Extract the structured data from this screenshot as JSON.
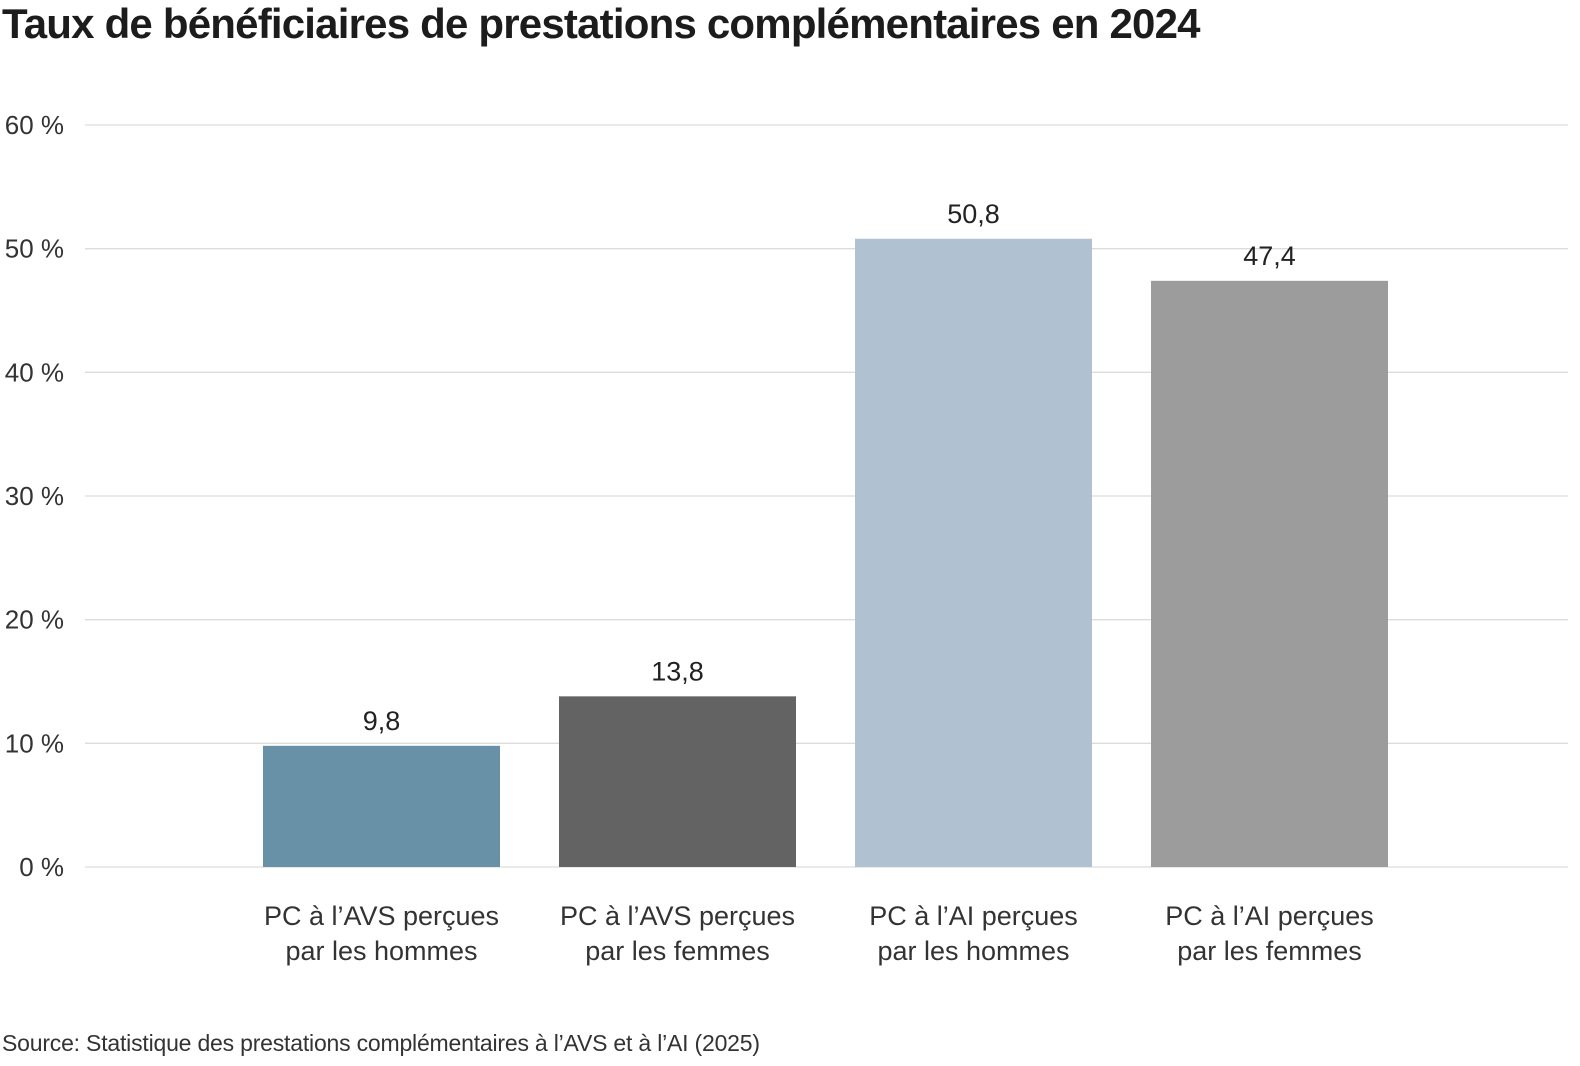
{
  "colors": {
    "avs_hommes": "#6891a7",
    "avs_femmes": "#636363",
    "ai_hommes": "#b0c1d1",
    "ai_femmes": "#9c9c9c",
    "grid": "#dcdcdc",
    "text": "#222222"
  },
  "chart_data": {
    "type": "bar",
    "title": "Taux de bénéficiaires de prestations complémentaires en 2024",
    "categories": [
      [
        "PC à l’AVS perçues",
        "par les hommes"
      ],
      [
        "PC à l’AVS perçues",
        "par les femmes"
      ],
      [
        "PC à l’AI perçues",
        "par les hommes"
      ],
      [
        "PC à l’AI perçues",
        "par les femmes"
      ]
    ],
    "values": [
      9.8,
      13.8,
      50.8,
      47.4
    ],
    "value_labels": [
      "9,8",
      "13,8",
      "50,8",
      "47,4"
    ],
    "bar_colors": [
      "#6891a7",
      "#636363",
      "#b0c1d1",
      "#9c9c9c"
    ],
    "ylim": [
      0,
      60
    ],
    "yticks": [
      0,
      10,
      20,
      30,
      40,
      50,
      60
    ],
    "ytick_labels": [
      "0 %",
      "10 %",
      "20 %",
      "30 %",
      "40 %",
      "50 %",
      "60 %"
    ],
    "grid": true,
    "legend": "none"
  },
  "source": "Source: Statistique des prestations complémentaires à l’AVS et à l’AI (2025)"
}
